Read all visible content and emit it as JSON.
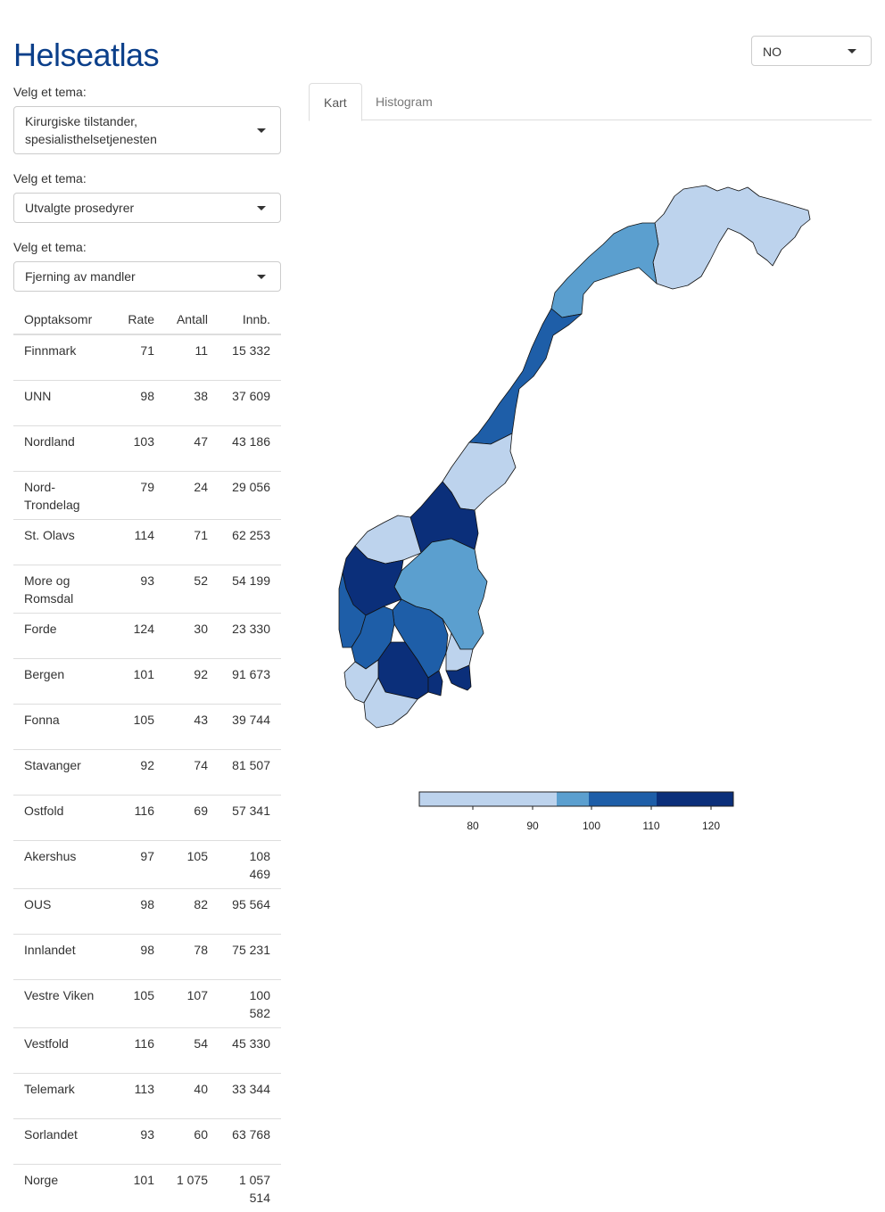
{
  "app": {
    "title": "Helseatlas"
  },
  "language": {
    "selected": "NO"
  },
  "filters": [
    {
      "label": "Velg et tema:",
      "value": "Kirurgiske tilstander, spesialisthelsetjenesten"
    },
    {
      "label": "Velg et tema:",
      "value": "Utvalgte prosedyrer"
    },
    {
      "label": "Velg et tema:",
      "value": "Fjerning av mandler"
    }
  ],
  "table": {
    "headers": [
      "Opptaksomr",
      "Rate",
      "Antall",
      "Innb."
    ],
    "rows": [
      {
        "area": "Finnmark",
        "rate": "71",
        "antall": "11",
        "innb": "15 332"
      },
      {
        "area": "UNN",
        "rate": "98",
        "antall": "38",
        "innb": "37 609"
      },
      {
        "area": "Nordland",
        "rate": "103",
        "antall": "47",
        "innb": "43 186"
      },
      {
        "area": "Nord-Trondelag",
        "rate": "79",
        "antall": "24",
        "innb": "29 056"
      },
      {
        "area": "St. Olavs",
        "rate": "114",
        "antall": "71",
        "innb": "62 253"
      },
      {
        "area": "More og Romsdal",
        "rate": "93",
        "antall": "52",
        "innb": "54 199"
      },
      {
        "area": "Forde",
        "rate": "124",
        "antall": "30",
        "innb": "23 330"
      },
      {
        "area": "Bergen",
        "rate": "101",
        "antall": "92",
        "innb": "91 673"
      },
      {
        "area": "Fonna",
        "rate": "105",
        "antall": "43",
        "innb": "39 744"
      },
      {
        "area": "Stavanger",
        "rate": "92",
        "antall": "74",
        "innb": "81 507"
      },
      {
        "area": "Ostfold",
        "rate": "116",
        "antall": "69",
        "innb": "57 341"
      },
      {
        "area": "Akershus",
        "rate": "97",
        "antall": "105",
        "innb": "108 469"
      },
      {
        "area": "OUS",
        "rate": "98",
        "antall": "82",
        "innb": "95 564"
      },
      {
        "area": "Innlandet",
        "rate": "98",
        "antall": "78",
        "innb": "75 231"
      },
      {
        "area": "Vestre Viken",
        "rate": "105",
        "antall": "107",
        "innb": "100 582"
      },
      {
        "area": "Vestfold",
        "rate": "116",
        "antall": "54",
        "innb": "45 330"
      },
      {
        "area": "Telemark",
        "rate": "113",
        "antall": "40",
        "innb": "33 344"
      },
      {
        "area": "Sorlandet",
        "rate": "93",
        "antall": "60",
        "innb": "63 768"
      },
      {
        "area": "Norge",
        "rate": "101",
        "antall": "1 075",
        "innb": "1 057 514"
      }
    ]
  },
  "tabs": [
    {
      "label": "Kart",
      "active": true
    },
    {
      "label": "Histogram",
      "active": false
    }
  ],
  "legend": {
    "ticks": [
      "80",
      "90",
      "100",
      "110",
      "120"
    ],
    "colors": [
      "#bdd3ed",
      "#5b9fcf",
      "#1e5ea8",
      "#0b2f7a"
    ]
  }
}
